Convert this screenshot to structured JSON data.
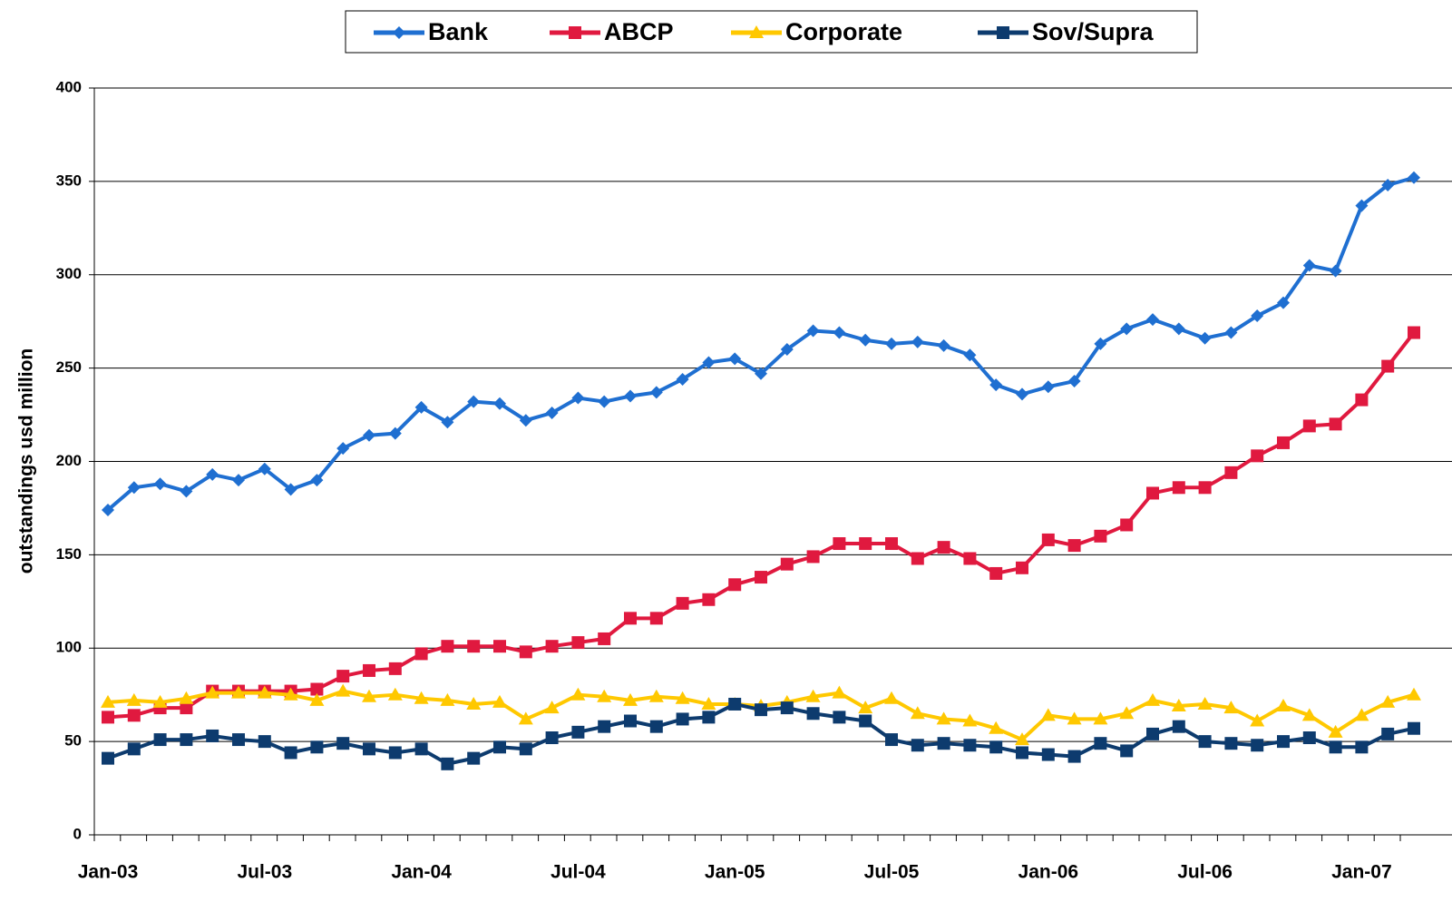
{
  "chart_data": {
    "type": "line",
    "y_label": "outstandings usd million",
    "categories": [
      "Jan-03",
      null,
      null,
      null,
      null,
      null,
      "Jul-03",
      null,
      null,
      null,
      null,
      null,
      "Jan-04",
      null,
      null,
      null,
      null,
      null,
      "Jul-04",
      null,
      null,
      null,
      null,
      null,
      "Jan-05",
      null,
      null,
      null,
      null,
      null,
      "Jul-05",
      null,
      null,
      null,
      null,
      null,
      "Jan-06",
      null,
      null,
      null,
      null,
      null,
      "Jul-06",
      null,
      null,
      null,
      null,
      null,
      "Jan-07",
      null,
      null
    ],
    "series": [
      {
        "name": "Bank",
        "color": "#1f6fd1",
        "marker": "diamond",
        "values": [
          174,
          186,
          188,
          184,
          193,
          190,
          196,
          185,
          190,
          207,
          214,
          215,
          229,
          221,
          232,
          231,
          222,
          226,
          234,
          232,
          235,
          237,
          244,
          253,
          255,
          247,
          260,
          270,
          269,
          265,
          263,
          264,
          262,
          257,
          241,
          236,
          240,
          243,
          263,
          271,
          276,
          271,
          266,
          269,
          278,
          285,
          305,
          302,
          337,
          348,
          352
        ]
      },
      {
        "name": "ABCP",
        "color": "#e0193f",
        "marker": "square",
        "values": [
          63,
          64,
          68,
          68,
          77,
          77,
          77,
          77,
          78,
          85,
          88,
          89,
          97,
          101,
          101,
          101,
          98,
          101,
          103,
          105,
          116,
          116,
          124,
          126,
          134,
          138,
          145,
          149,
          156,
          156,
          156,
          148,
          154,
          148,
          140,
          143,
          158,
          155,
          160,
          166,
          183,
          186,
          186,
          194,
          203,
          210,
          219,
          220,
          233,
          251,
          269
        ]
      },
      {
        "name": "Corporate",
        "color": "#ffc800",
        "marker": "triangle",
        "values": [
          71,
          72,
          71,
          73,
          76,
          76,
          76,
          75,
          72,
          77,
          74,
          75,
          73,
          72,
          70,
          71,
          62,
          68,
          75,
          74,
          72,
          74,
          73,
          70,
          70,
          69,
          71,
          74,
          76,
          68,
          73,
          65,
          62,
          61,
          57,
          51,
          64,
          62,
          62,
          65,
          72,
          69,
          70,
          68,
          61,
          69,
          64,
          55,
          64,
          71,
          75
        ]
      },
      {
        "name": "Sov/Supra",
        "color": "#0d3b6e",
        "marker": "square",
        "values": [
          41,
          46,
          51,
          51,
          53,
          51,
          50,
          44,
          47,
          49,
          46,
          44,
          46,
          38,
          41,
          47,
          46,
          52,
          55,
          58,
          61,
          58,
          62,
          63,
          70,
          67,
          68,
          65,
          63,
          61,
          51,
          48,
          49,
          48,
          47,
          44,
          43,
          42,
          49,
          45,
          54,
          58,
          50,
          49,
          48,
          50,
          52,
          47,
          47,
          54,
          57
        ]
      }
    ],
    "ylim": [
      0,
      400
    ],
    "yticks": [
      0,
      50,
      100,
      150,
      200,
      250,
      300,
      350,
      400
    ],
    "grid": true,
    "legend": "top"
  }
}
